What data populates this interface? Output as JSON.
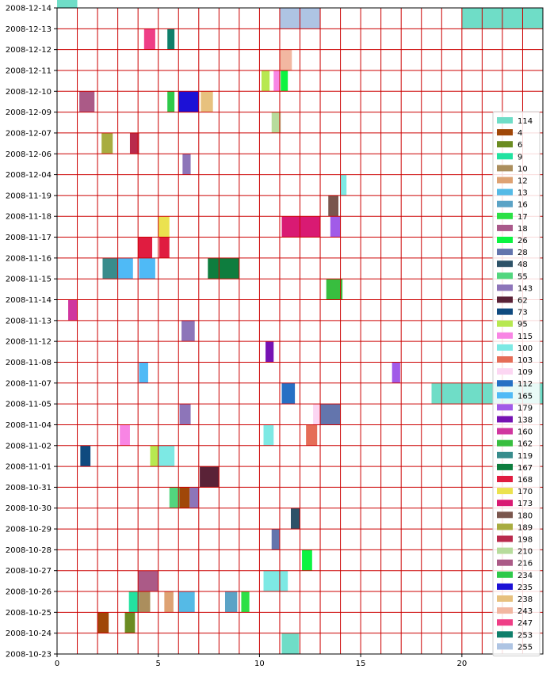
{
  "chart_data": {
    "type": "bar",
    "orientation": "horizontal-spans",
    "title": "",
    "xlabel": "",
    "ylabel": "",
    "xlim": [
      0,
      24
    ],
    "x_ticks": [
      0,
      5,
      10,
      15,
      20
    ],
    "grid": true,
    "grid_color": "#cc0000",
    "legend_position": "right",
    "categories": [
      "2008-10-23",
      "2008-10-24",
      "2008-10-25",
      "2008-10-26",
      "2008-10-27",
      "2008-10-28",
      "2008-10-29",
      "2008-10-30",
      "2008-10-31",
      "2008-11-01",
      "2008-11-02",
      "2008-11-04",
      "2008-11-05",
      "2008-11-07",
      "2008-11-08",
      "2008-11-12",
      "2008-11-13",
      "2008-11-14",
      "2008-11-15",
      "2008-11-16",
      "2008-11-17",
      "2008-11-18",
      "2008-11-19",
      "2008-12-04",
      "2008-12-06",
      "2008-12-07",
      "2008-12-09",
      "2008-12-10",
      "2008-12-11",
      "2008-12-12",
      "2008-12-13",
      "2008-12-14"
    ],
    "series": [
      {
        "name": "114",
        "color": "#6fddc7"
      },
      {
        "name": "4",
        "color": "#a04708"
      },
      {
        "name": "6",
        "color": "#6b8c22"
      },
      {
        "name": "9",
        "color": "#22e2a0"
      },
      {
        "name": "10",
        "color": "#ab8e5d"
      },
      {
        "name": "12",
        "color": "#dea273"
      },
      {
        "name": "13",
        "color": "#55bae6"
      },
      {
        "name": "16",
        "color": "#5ba3c6"
      },
      {
        "name": "17",
        "color": "#2be046"
      },
      {
        "name": "18",
        "color": "#a9598a"
      },
      {
        "name": "26",
        "color": "#0cf441"
      },
      {
        "name": "28",
        "color": "#6375ad"
      },
      {
        "name": "48",
        "color": "#2d5268"
      },
      {
        "name": "55",
        "color": "#52d67e"
      },
      {
        "name": "143",
        "color": "#8d75b9"
      },
      {
        "name": "62",
        "color": "#5a2237"
      },
      {
        "name": "73",
        "color": "#0f4a7f"
      },
      {
        "name": "95",
        "color": "#b7e851"
      },
      {
        "name": "115",
        "color": "#f885e4"
      },
      {
        "name": "100",
        "color": "#7de9e4"
      },
      {
        "name": "103",
        "color": "#e56d57"
      },
      {
        "name": "109",
        "color": "#fcd6f2"
      },
      {
        "name": "112",
        "color": "#2670c4"
      },
      {
        "name": "165",
        "color": "#4fbaf6"
      },
      {
        "name": "179",
        "color": "#a15be8"
      },
      {
        "name": "138",
        "color": "#7613b3"
      },
      {
        "name": "160",
        "color": "#d0369f"
      },
      {
        "name": "162",
        "color": "#38be3f"
      },
      {
        "name": "119",
        "color": "#388c8c"
      },
      {
        "name": "167",
        "color": "#0e7d3e"
      },
      {
        "name": "168",
        "color": "#e01c40"
      },
      {
        "name": "170",
        "color": "#ebe24f"
      },
      {
        "name": "173",
        "color": "#d91a73"
      },
      {
        "name": "180",
        "color": "#7a564d"
      },
      {
        "name": "189",
        "color": "#a8ac40"
      },
      {
        "name": "198",
        "color": "#b92a4c"
      },
      {
        "name": "210",
        "color": "#b7dc9c"
      },
      {
        "name": "216",
        "color": "#ab5a87"
      },
      {
        "name": "234",
        "color": "#2ec94a"
      },
      {
        "name": "235",
        "color": "#1c11d6"
      },
      {
        "name": "238",
        "color": "#e7c17e"
      },
      {
        "name": "243",
        "color": "#f2b7a1"
      },
      {
        "name": "247",
        "color": "#ef3e86"
      },
      {
        "name": "253",
        "color": "#0f7f6b"
      },
      {
        "name": "255",
        "color": "#aec4e3"
      }
    ],
    "spans": [
      {
        "series": "114",
        "category": "2008-12-14",
        "x0": 0.0,
        "x1": 1.0
      },
      {
        "series": "255",
        "category": "2008-12-13",
        "x0": 11.0,
        "x1": 13.0
      },
      {
        "series": "114",
        "category": "2008-12-13",
        "x0": 20.0,
        "x1": 24.0
      },
      {
        "series": "247",
        "category": "2008-12-12",
        "x0": 4.3,
        "x1": 4.85
      },
      {
        "series": "253",
        "category": "2008-12-12",
        "x0": 5.45,
        "x1": 5.8
      },
      {
        "series": "243",
        "category": "2008-12-11",
        "x0": 11.0,
        "x1": 11.6
      },
      {
        "series": "95",
        "category": "2008-12-10",
        "x0": 10.1,
        "x1": 10.5
      },
      {
        "series": "115",
        "category": "2008-12-10",
        "x0": 10.7,
        "x1": 11.0
      },
      {
        "series": "26",
        "category": "2008-12-10",
        "x0": 11.05,
        "x1": 11.4
      },
      {
        "series": "216",
        "category": "2008-12-09",
        "x0": 1.1,
        "x1": 1.85
      },
      {
        "series": "234",
        "category": "2008-12-09",
        "x0": 5.45,
        "x1": 5.8
      },
      {
        "series": "235",
        "category": "2008-12-09",
        "x0": 6.0,
        "x1": 7.0
      },
      {
        "series": "238",
        "category": "2008-12-09",
        "x0": 7.1,
        "x1": 7.7
      },
      {
        "series": "210",
        "category": "2008-12-07",
        "x0": 10.6,
        "x1": 11.05
      },
      {
        "series": "189",
        "category": "2008-12-06",
        "x0": 2.2,
        "x1": 2.75
      },
      {
        "series": "198",
        "category": "2008-12-06",
        "x0": 3.6,
        "x1": 4.05
      },
      {
        "series": "143",
        "category": "2008-12-04",
        "x0": 6.2,
        "x1": 6.6
      },
      {
        "series": "100",
        "category": "2008-11-19",
        "x0": 14.0,
        "x1": 14.3
      },
      {
        "series": "180",
        "category": "2008-11-18",
        "x0": 13.4,
        "x1": 13.9
      },
      {
        "series": "170",
        "category": "2008-11-17",
        "x0": 5.0,
        "x1": 5.55
      },
      {
        "series": "173",
        "category": "2008-11-17",
        "x0": 11.1,
        "x1": 13.0
      },
      {
        "series": "179",
        "category": "2008-11-17",
        "x0": 13.5,
        "x1": 14.0
      },
      {
        "series": "168",
        "category": "2008-11-16",
        "x0": 4.0,
        "x1": 4.7
      },
      {
        "series": "168",
        "category": "2008-11-16",
        "x0": 5.05,
        "x1": 5.55
      },
      {
        "series": "119",
        "category": "2008-11-15",
        "x0": 2.25,
        "x1": 3.0
      },
      {
        "series": "165",
        "category": "2008-11-15",
        "x0": 3.0,
        "x1": 3.75
      },
      {
        "series": "165",
        "category": "2008-11-15",
        "x0": 4.05,
        "x1": 4.85
      },
      {
        "series": "167",
        "category": "2008-11-15",
        "x0": 7.45,
        "x1": 9.0
      },
      {
        "series": "162",
        "category": "2008-11-14",
        "x0": 13.3,
        "x1": 14.1
      },
      {
        "series": "160",
        "category": "2008-11-13",
        "x0": 0.55,
        "x1": 1.0
      },
      {
        "series": "143",
        "category": "2008-11-12",
        "x0": 6.15,
        "x1": 6.8
      },
      {
        "series": "138",
        "category": "2008-11-08",
        "x0": 10.3,
        "x1": 10.7
      },
      {
        "series": "165",
        "category": "2008-11-07",
        "x0": 4.05,
        "x1": 4.5
      },
      {
        "series": "179",
        "category": "2008-11-07",
        "x0": 16.55,
        "x1": 16.95
      },
      {
        "series": "112",
        "category": "2008-11-05",
        "x0": 11.1,
        "x1": 11.75
      },
      {
        "series": "114",
        "category": "2008-11-05",
        "x0": 18.5,
        "x1": 24.0
      },
      {
        "series": "143",
        "category": "2008-11-04",
        "x0": 6.05,
        "x1": 6.6
      },
      {
        "series": "109",
        "category": "2008-11-04",
        "x0": 12.65,
        "x1": 13.0
      },
      {
        "series": "28",
        "category": "2008-11-04",
        "x0": 13.0,
        "x1": 14.0
      },
      {
        "series": "115",
        "category": "2008-11-02",
        "x0": 3.1,
        "x1": 3.6
      },
      {
        "series": "100",
        "category": "2008-11-02",
        "x0": 10.2,
        "x1": 10.7
      },
      {
        "series": "103",
        "category": "2008-11-02",
        "x0": 12.3,
        "x1": 12.85
      },
      {
        "series": "73",
        "category": "2008-11-01",
        "x0": 1.15,
        "x1": 1.65
      },
      {
        "series": "95",
        "category": "2008-11-01",
        "x0": 4.6,
        "x1": 5.0
      },
      {
        "series": "100",
        "category": "2008-11-01",
        "x0": 5.0,
        "x1": 5.8
      },
      {
        "series": "62",
        "category": "2008-10-31",
        "x0": 7.05,
        "x1": 8.0
      },
      {
        "series": "55",
        "category": "2008-10-30",
        "x0": 5.55,
        "x1": 6.05
      },
      {
        "series": "4",
        "category": "2008-10-30",
        "x0": 6.05,
        "x1": 6.55
      },
      {
        "series": "143",
        "category": "2008-10-30",
        "x0": 6.55,
        "x1": 7.0
      },
      {
        "series": "48",
        "category": "2008-10-29",
        "x0": 11.55,
        "x1": 12.0
      },
      {
        "series": "28",
        "category": "2008-10-28",
        "x0": 10.6,
        "x1": 11.0
      },
      {
        "series": "26",
        "category": "2008-10-27",
        "x0": 12.1,
        "x1": 12.6
      },
      {
        "series": "216",
        "category": "2008-10-26",
        "x0": 4.0,
        "x1": 5.0
      },
      {
        "series": "100",
        "category": "2008-10-26",
        "x0": 10.2,
        "x1": 11.4
      },
      {
        "series": "9",
        "category": "2008-10-25",
        "x0": 3.55,
        "x1": 4.05
      },
      {
        "series": "10",
        "category": "2008-10-25",
        "x0": 4.05,
        "x1": 4.6
      },
      {
        "series": "12",
        "category": "2008-10-25",
        "x0": 5.3,
        "x1": 5.75
      },
      {
        "series": "13",
        "category": "2008-10-25",
        "x0": 6.0,
        "x1": 6.8
      },
      {
        "series": "16",
        "category": "2008-10-25",
        "x0": 8.3,
        "x1": 8.9
      },
      {
        "series": "17",
        "category": "2008-10-25",
        "x0": 9.1,
        "x1": 9.5
      },
      {
        "series": "4",
        "category": "2008-10-24",
        "x0": 2.0,
        "x1": 2.55
      },
      {
        "series": "6",
        "category": "2008-10-24",
        "x0": 3.35,
        "x1": 3.85
      },
      {
        "series": "114",
        "category": "2008-10-23",
        "x0": 11.1,
        "x1": 11.95
      }
    ]
  }
}
